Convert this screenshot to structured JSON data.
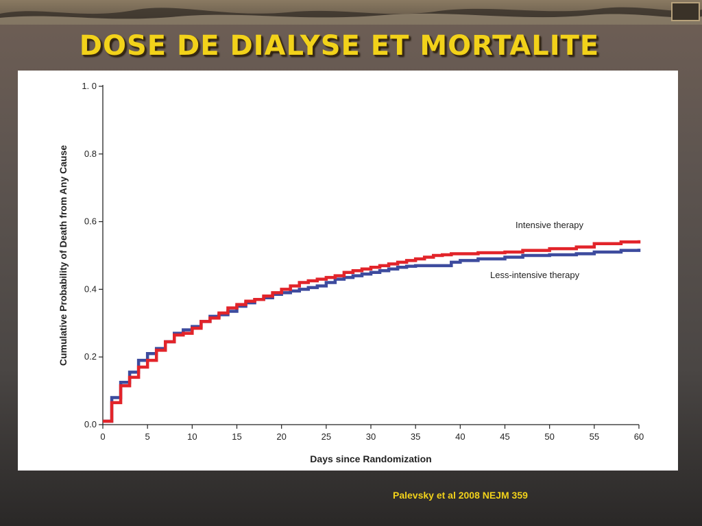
{
  "slide": {
    "title": "DOSE DE DIALYSE ET MORTALITE",
    "citation": "Palevsky et al 2008 NEJM 359"
  },
  "colors": {
    "title": "#f2d21a",
    "intensive": "#e2242a",
    "less_intensive": "#3d4b9e"
  },
  "chart_data": {
    "type": "line",
    "step": true,
    "xlabel": "Days since Randomization",
    "ylabel": "Cumulative Probability of Death from Any Cause",
    "xlim": [
      0,
      60
    ],
    "ylim": [
      0,
      1.0
    ],
    "xticks": [
      0,
      5,
      10,
      15,
      20,
      25,
      30,
      35,
      40,
      45,
      50,
      55,
      60
    ],
    "yticks": [
      {
        "value": 0.0,
        "label": "0.0"
      },
      {
        "value": 0.2,
        "label": "0.2"
      },
      {
        "value": 0.4,
        "label": "0.4"
      },
      {
        "value": 0.6,
        "label": "0.6"
      },
      {
        "value": 0.8,
        "label": "0.8"
      },
      {
        "value": 1.0,
        "label": "1. 0"
      }
    ],
    "grid": false,
    "series": [
      {
        "name": "Intensive therapy",
        "color": "#e2242a",
        "x": [
          0,
          1,
          2,
          3,
          4,
          5,
          6,
          7,
          8,
          9,
          10,
          11,
          12,
          13,
          14,
          15,
          16,
          17,
          18,
          19,
          20,
          21,
          22,
          23,
          24,
          25,
          26,
          27,
          28,
          29,
          30,
          31,
          32,
          33,
          34,
          35,
          36,
          37,
          38,
          39,
          40,
          42,
          45,
          47,
          50,
          53,
          55,
          58,
          60
        ],
        "y": [
          0.01,
          0.065,
          0.115,
          0.14,
          0.17,
          0.19,
          0.22,
          0.245,
          0.265,
          0.27,
          0.285,
          0.305,
          0.315,
          0.33,
          0.345,
          0.355,
          0.365,
          0.37,
          0.38,
          0.39,
          0.4,
          0.41,
          0.42,
          0.425,
          0.43,
          0.435,
          0.44,
          0.45,
          0.455,
          0.46,
          0.465,
          0.47,
          0.475,
          0.48,
          0.485,
          0.49,
          0.495,
          0.5,
          0.502,
          0.505,
          0.505,
          0.508,
          0.51,
          0.515,
          0.52,
          0.525,
          0.535,
          0.54,
          0.545
        ]
      },
      {
        "name": "Less-intensive therapy",
        "color": "#3d4b9e",
        "x": [
          0,
          1,
          2,
          3,
          4,
          5,
          6,
          7,
          8,
          9,
          10,
          11,
          12,
          13,
          14,
          15,
          16,
          17,
          18,
          19,
          20,
          21,
          22,
          23,
          24,
          25,
          26,
          27,
          28,
          29,
          30,
          31,
          32,
          33,
          34,
          35,
          36,
          37,
          38,
          39,
          40,
          42,
          45,
          47,
          50,
          53,
          55,
          58,
          60
        ],
        "y": [
          0.01,
          0.08,
          0.125,
          0.155,
          0.19,
          0.21,
          0.225,
          0.245,
          0.27,
          0.28,
          0.29,
          0.305,
          0.32,
          0.325,
          0.335,
          0.35,
          0.36,
          0.37,
          0.375,
          0.385,
          0.39,
          0.395,
          0.4,
          0.405,
          0.41,
          0.42,
          0.43,
          0.435,
          0.44,
          0.445,
          0.45,
          0.455,
          0.46,
          0.465,
          0.468,
          0.47,
          0.47,
          0.47,
          0.47,
          0.48,
          0.485,
          0.49,
          0.495,
          0.5,
          0.502,
          0.505,
          0.51,
          0.515,
          0.52
        ]
      }
    ]
  }
}
